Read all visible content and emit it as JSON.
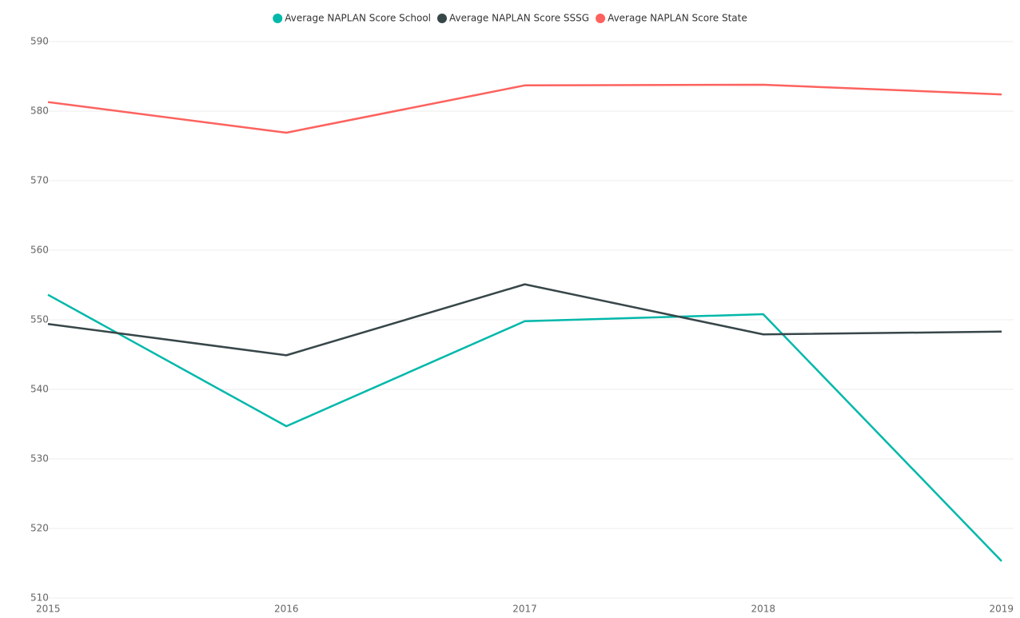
{
  "chart_data": {
    "type": "line",
    "x": [
      2015,
      2016,
      2017,
      2018,
      2019
    ],
    "xlim": [
      2015,
      2019
    ],
    "xticks": [
      2015,
      2016,
      2017,
      2018,
      2019
    ],
    "ylim": [
      510,
      590
    ],
    "yticks": [
      510,
      520,
      530,
      540,
      550,
      560,
      570,
      580,
      590
    ],
    "grid": true,
    "legend": "top",
    "series": [
      {
        "name": "Average NAPLAN Score School",
        "color": "#01B8AA",
        "values": [
          553.6,
          534.7,
          549.8,
          550.8,
          515.3
        ]
      },
      {
        "name": "Average NAPLAN Score SSSG",
        "color": "#374649",
        "values": [
          549.4,
          544.9,
          555.1,
          547.9,
          548.3
        ]
      },
      {
        "name": "Average NAPLAN Score State",
        "color": "#FD625E",
        "values": [
          581.3,
          576.9,
          583.7,
          583.8,
          582.4
        ]
      }
    ]
  }
}
